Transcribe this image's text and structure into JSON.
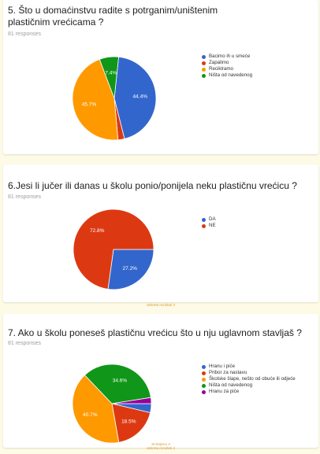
{
  "colors": {
    "blue": "#3366cc",
    "red": "#dc3912",
    "orange": "#ff9900",
    "green": "#109618",
    "purple": "#990099"
  },
  "chart_data": [
    {
      "type": "pie",
      "title": "5. Što u domaćinstvu radite s potrganim/uništenim plastičnim vrećicama ?",
      "responses": "81 responses",
      "legend": [
        {
          "label": "Bacimo ih u smeće",
          "value": 44.4,
          "color": "#3366cc",
          "pct_label": "44.4%"
        },
        {
          "label": "Zapalimo",
          "value": 2.5,
          "color": "#dc3912",
          "pct_label": ""
        },
        {
          "label": "Reciklramo",
          "value": 45.7,
          "color": "#ff9900",
          "pct_label": "45.7%"
        },
        {
          "label": "Ništa od navedenog",
          "value": 7.4,
          "color": "#109618",
          "pct_label": "7.4%"
        }
      ],
      "footer": ""
    },
    {
      "type": "pie",
      "title": "6.Jesi li jučer ili danas u školu ponio/ponijela neku plastičnu vrećicu ?",
      "responses": "81 responses",
      "legend": [
        {
          "label": "DA",
          "value": 27.2,
          "color": "#3366cc",
          "pct_label": "27.2%"
        },
        {
          "label": "NE",
          "value": 72.8,
          "color": "#dc3912",
          "pct_label": "72.8%"
        }
      ],
      "footer": "ankreta rezultati 3"
    },
    {
      "type": "pie",
      "title": "7. Ako u školu poneseš plastičnu vrećicu što u nju uglavnom stavljaš ?",
      "responses": "81 responses",
      "legend": [
        {
          "label": "Hranu i piće",
          "value": 3.7,
          "color": "#3366cc",
          "pct_label": ""
        },
        {
          "label": "Pribor za nastavu",
          "value": 18.5,
          "color": "#dc3912",
          "pct_label": "18.5%"
        },
        {
          "label": "Školske šlape, nešto od obuće ili odjeće",
          "value": 40.7,
          "color": "#ff9900",
          "pct_label": "40.7%"
        },
        {
          "label": "Ništa od navedenog",
          "value": 34.6,
          "color": "#109618",
          "pct_label": "34.6%"
        },
        {
          "label": "Hranu za piće",
          "value": 2.5,
          "color": "#990099",
          "pct_label": ""
        }
      ],
      "footer": "Snimljeno 4\nankreta rezultati 4"
    }
  ]
}
